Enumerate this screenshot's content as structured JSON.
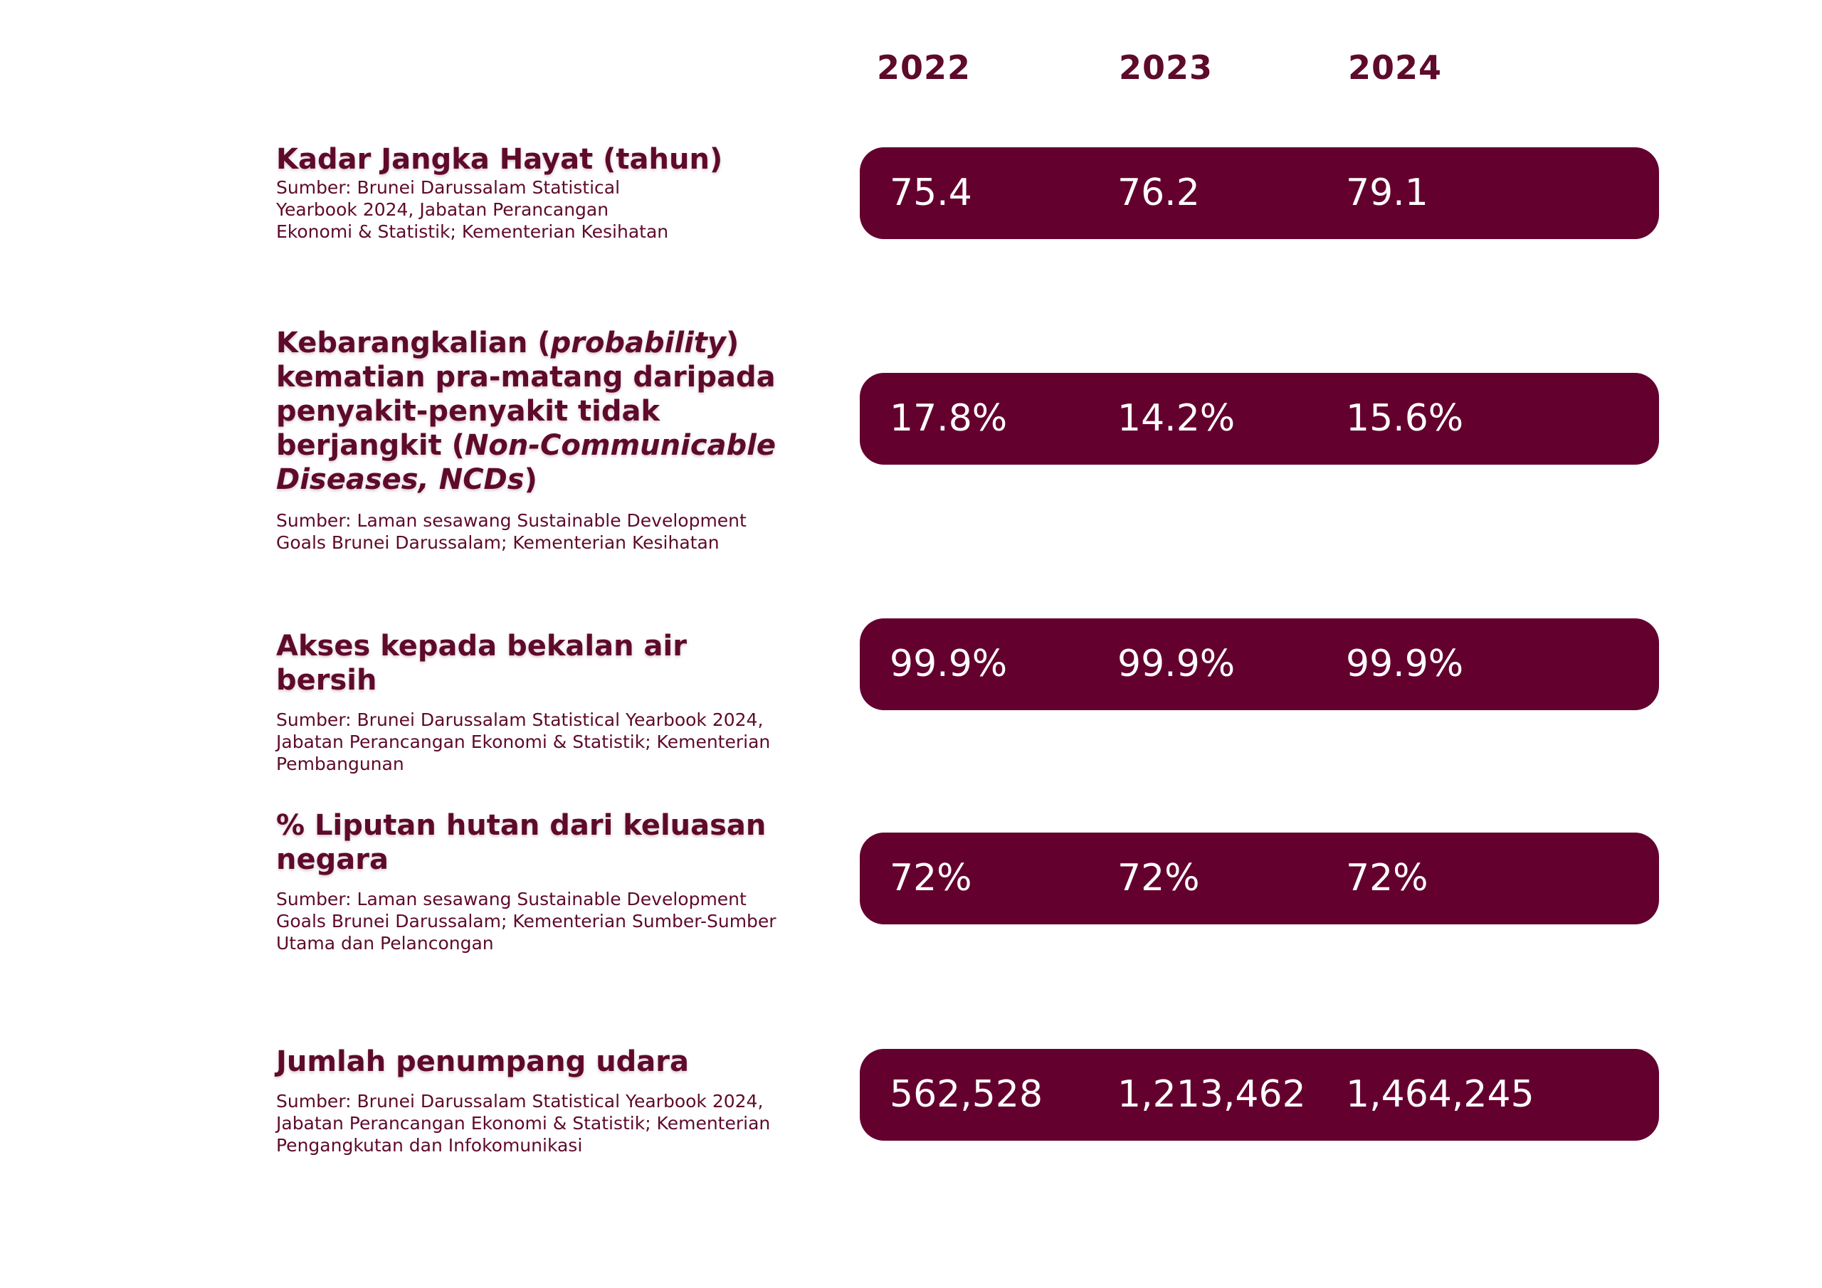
{
  "years": [
    "2022",
    "2023",
    "2024"
  ],
  "indicators": [
    {
      "title": "Kadar Jangka Hayat (tahun)",
      "source": "Sumber: Brunei Darussalam Statistical Yearbook 2024, Jabatan Perancangan Ekonomi & Statistik; Kementerian Kesihatan",
      "values": [
        "75.4",
        "76.2",
        "79.1"
      ]
    },
    {
      "title_parts": {
        "a": "Kebarangkalian (",
        "b": "probability",
        "c": ") kematian pra-matang daripada penyakit-penyakit tidak berjangkit (",
        "d": "Non-Communicable Diseases, NCDs",
        "e": ")"
      },
      "source": "Sumber: Laman sesawang Sustainable Development Goals Brunei Darussalam; Kementerian Kesihatan",
      "values": [
        "17.8%",
        "14.2%",
        "15.6%"
      ]
    },
    {
      "title": "Akses kepada bekalan air bersih",
      "source": "Sumber: Brunei Darussalam Statistical Yearbook 2024, Jabatan Perancangan Ekonomi & Statistik; Kementerian Pembangunan",
      "values": [
        "99.9%",
        "99.9%",
        "99.9%"
      ]
    },
    {
      "title": "% Liputan hutan dari keluasan negara",
      "source": "Sumber: Laman sesawang Sustainable Development Goals Brunei Darussalam; Kementerian Sumber-Sumber Utama dan Pelancongan",
      "values": [
        "72%",
        "72%",
        "72%"
      ]
    },
    {
      "title": "Jumlah penumpang udara",
      "source": "Sumber: Brunei Darussalam Statistical Yearbook 2024, Jabatan Perancangan Ekonomi & Statistik; Kementerian Pengangkutan dan Infokomunikasi",
      "values": [
        "562,528",
        "1,213,462",
        "1,464,245"
      ]
    }
  ],
  "colors": {
    "primary": "#64002e",
    "text": "#5e0a2b",
    "value_text": "#ffffff"
  }
}
